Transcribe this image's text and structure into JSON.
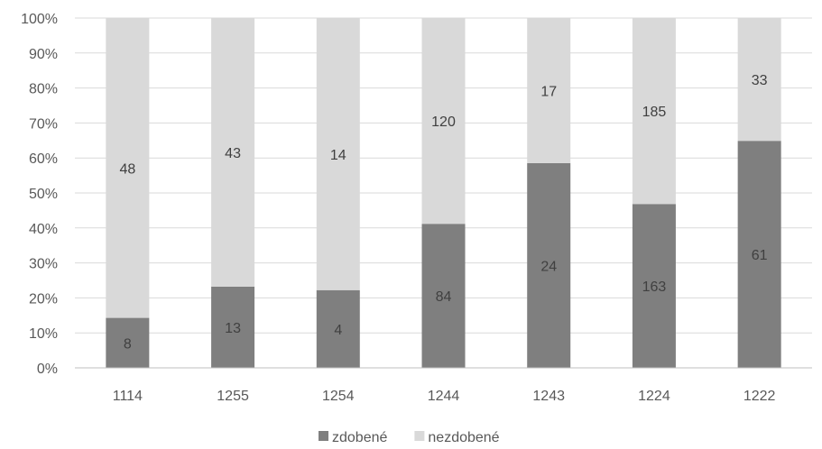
{
  "chart_data": {
    "type": "bar",
    "stacked": true,
    "normalized": true,
    "title": "",
    "xlabel": "",
    "ylabel": "",
    "categories": [
      "1114",
      "1255",
      "1254",
      "1244",
      "1243",
      "1224",
      "1222"
    ],
    "series": [
      {
        "name": "zdobené",
        "values": [
          8,
          13,
          4,
          84,
          24,
          163,
          61
        ],
        "color": "#7f7f7f"
      },
      {
        "name": "nezdobené",
        "values": [
          48,
          43,
          14,
          120,
          17,
          185,
          33
        ],
        "color": "#d9d9d9"
      }
    ],
    "y_ticks": [
      "0%",
      "10%",
      "20%",
      "30%",
      "40%",
      "50%",
      "60%",
      "70%",
      "80%",
      "90%",
      "100%"
    ],
    "ylim": [
      0,
      100
    ],
    "grid": true,
    "legend_position": "bottom"
  }
}
